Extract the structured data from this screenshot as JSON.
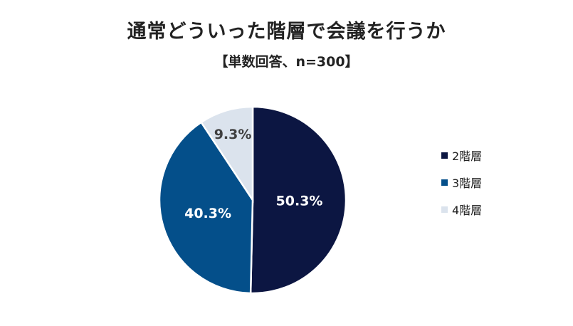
{
  "chart_data": {
    "type": "pie",
    "title": "通常どういった階層で会議を行うか",
    "subtitle": "【単数回答、n=300】",
    "categories": [
      "2階層",
      "3階層",
      "4階層"
    ],
    "values": [
      50.3,
      40.3,
      9.3
    ],
    "labels": [
      "50.3%",
      "40.3%",
      "9.3%"
    ],
    "colors": [
      "#0c1642",
      "#044f8a",
      "#dbe3ed"
    ],
    "label_colors": [
      "#ffffff",
      "#ffffff",
      "#404040"
    ],
    "legend_position": "right"
  }
}
